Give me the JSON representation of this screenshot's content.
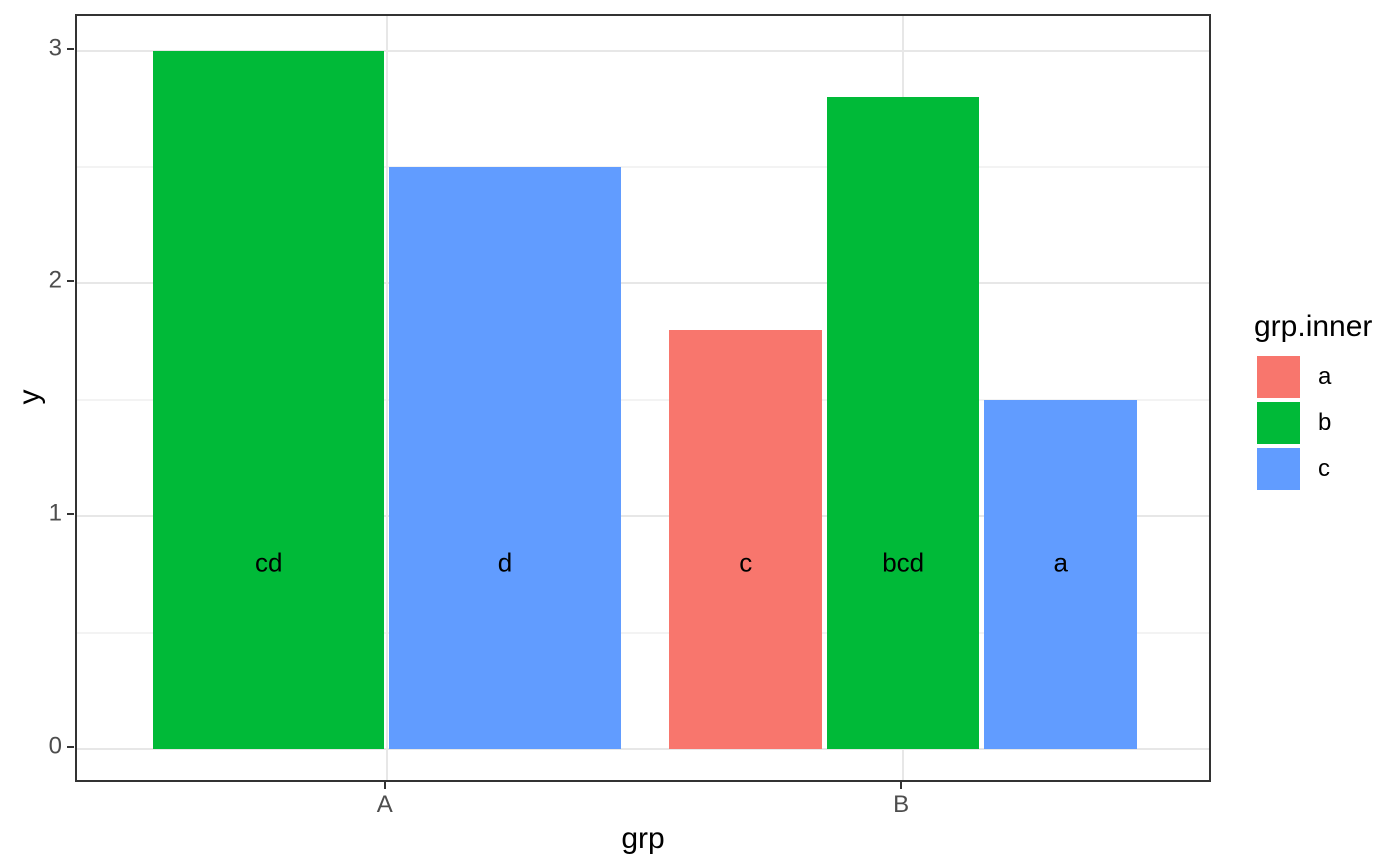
{
  "chart_data": {
    "type": "bar",
    "title": "",
    "xlabel": "grp",
    "ylabel": "y",
    "legend_title": "grp.inner",
    "categories": [
      "A",
      "B"
    ],
    "x_tick_labels": [
      "A",
      "B"
    ],
    "y_ticks": [
      0,
      1,
      2,
      3
    ],
    "y_tick_labels": [
      "0",
      "1",
      "2",
      "3"
    ],
    "y_minor_ticks": [
      0.5,
      1.5,
      2.5
    ],
    "ylim": [
      0,
      3
    ],
    "grid": "major and minor horizontal, major vertical at categories",
    "legend_position": "right",
    "legend_entries": [
      {
        "label": "a",
        "color": "#F8766D"
      },
      {
        "label": "b",
        "color": "#00BA38"
      },
      {
        "label": "c",
        "color": "#619CFF"
      }
    ],
    "bars": [
      {
        "group": "A",
        "inner": "b",
        "value": 3.0,
        "label": "cd",
        "color": "#00BA38"
      },
      {
        "group": "A",
        "inner": "c",
        "value": 2.5,
        "label": "d",
        "color": "#619CFF"
      },
      {
        "group": "B",
        "inner": "a",
        "value": 1.8,
        "label": "c",
        "color": "#F8766D"
      },
      {
        "group": "B",
        "inner": "b",
        "value": 2.8,
        "label": "bcd",
        "color": "#00BA38"
      },
      {
        "group": "B",
        "inner": "c",
        "value": 1.5,
        "label": "a",
        "color": "#619CFF"
      }
    ],
    "bar_label_y": 0.8
  },
  "colors": {
    "panel_border": "#333333",
    "tick_mark": "#333333",
    "tick_label": "#4d4d4d",
    "grid_major": "#e7e7e7",
    "grid_minor": "#f3f3f3",
    "text": "#000000",
    "background": "#ffffff"
  }
}
